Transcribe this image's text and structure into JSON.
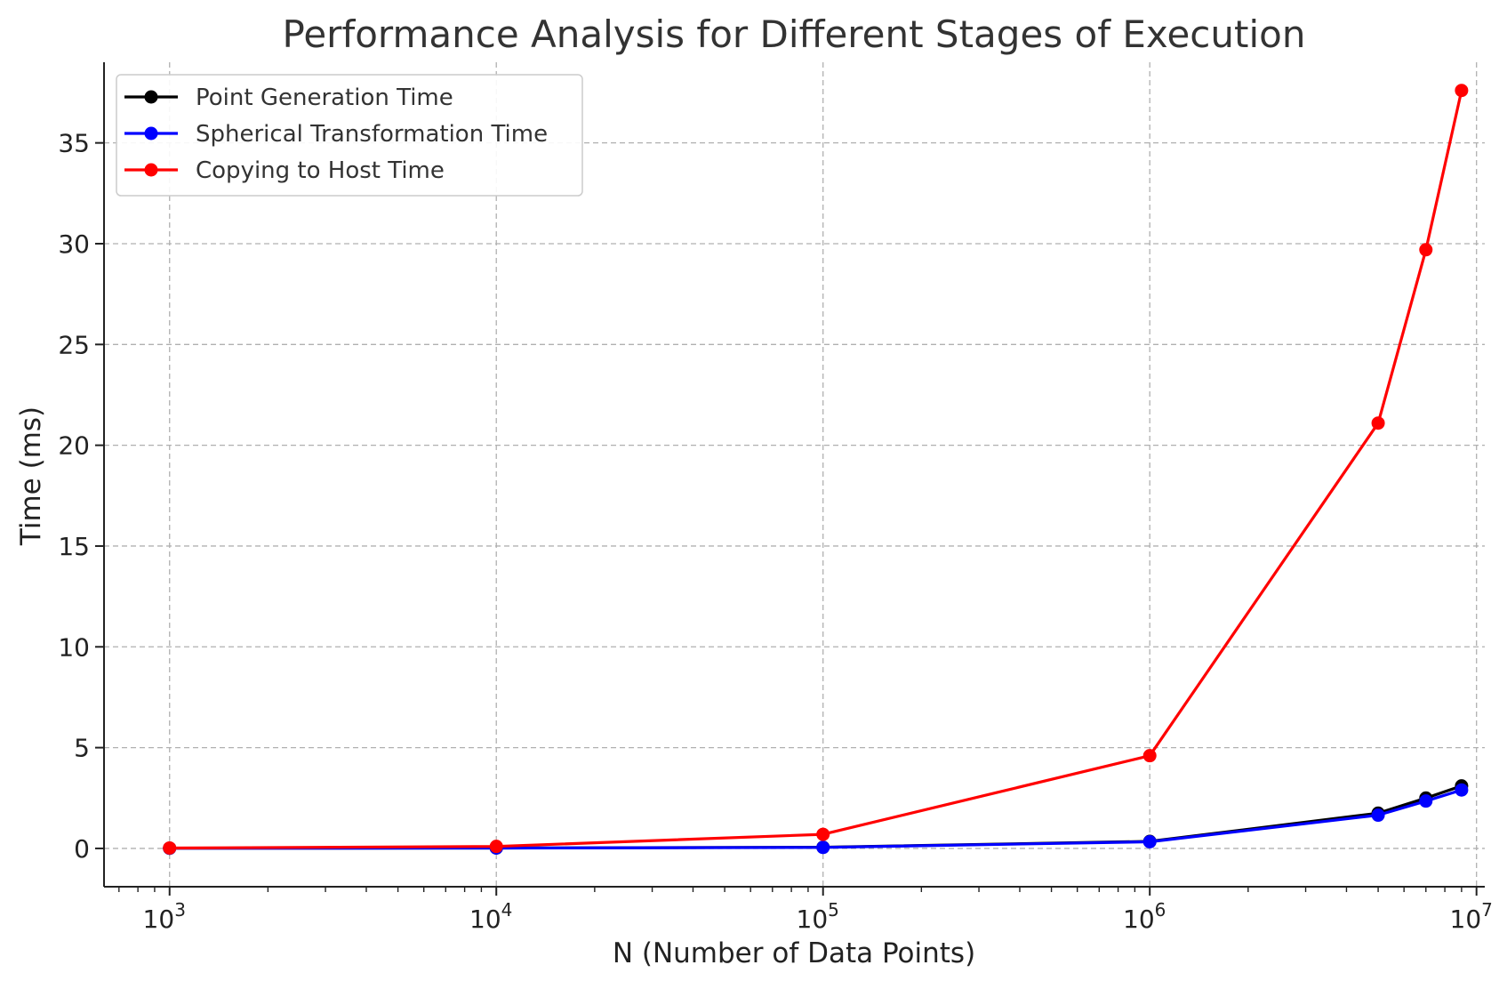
{
  "chart_data": {
    "type": "line",
    "title": "Performance Analysis for Different Stages of Execution",
    "xlabel": "N (Number of Data Points)",
    "ylabel": "Time (ms)",
    "xscale": "log",
    "xlim": [
      630,
      10600000
    ],
    "ylim": [
      -1.9,
      39.0
    ],
    "x_ticks": [
      {
        "value": 1000,
        "base": "10",
        "exp": "3"
      },
      {
        "value": 10000,
        "base": "10",
        "exp": "4"
      },
      {
        "value": 100000,
        "base": "10",
        "exp": "5"
      },
      {
        "value": 1000000,
        "base": "10",
        "exp": "6"
      },
      {
        "value": 10000000,
        "base": "10",
        "exp": "7"
      }
    ],
    "y_ticks": [
      0,
      5,
      10,
      15,
      20,
      25,
      30,
      35
    ],
    "grid": true,
    "legend_position": "upper-left",
    "x": [
      1000,
      10000,
      100000,
      1000000,
      5000000,
      7000000,
      9000000
    ],
    "series": [
      {
        "name": "Point Generation Time",
        "color": "#000000",
        "values": [
          0.01,
          0.02,
          0.06,
          0.35,
          1.75,
          2.5,
          3.1
        ]
      },
      {
        "name": "Spherical Transformation Time",
        "color": "#0000ff",
        "values": [
          0.01,
          0.02,
          0.05,
          0.33,
          1.65,
          2.35,
          2.9
        ]
      },
      {
        "name": "Copying to Host Time",
        "color": "#ff0000",
        "values": [
          0.02,
          0.1,
          0.7,
          4.6,
          21.1,
          29.7,
          37.6
        ]
      }
    ]
  }
}
